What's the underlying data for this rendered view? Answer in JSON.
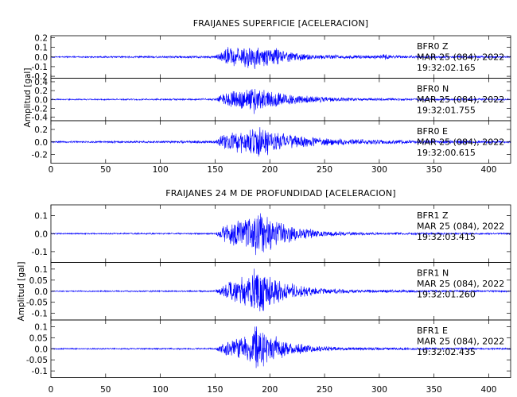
{
  "chart_data": [
    {
      "type": "line",
      "title": "FRAIJANES SUPERFICIE [ACELERACION]",
      "ylabel": "Amplitud [gal]",
      "xlim": [
        0,
        420
      ],
      "x_ticks": [
        0,
        50,
        100,
        150,
        200,
        250,
        300,
        350,
        400
      ],
      "line_color": "#0000ff",
      "series": [
        {
          "name": "BFR0 Z",
          "info": [
            "BFR0   Z",
            "MAR 25 (084), 2022",
            "19:32:02.165"
          ],
          "ylim": [
            -0.22,
            0.22
          ],
          "y_ticks": [
            -0.2,
            -0.1,
            0.0,
            0.1,
            0.2
          ],
          "envelope": [
            [
              0,
              0.008
            ],
            [
              60,
              0.01
            ],
            [
              100,
              0.012
            ],
            [
              150,
              0.015
            ],
            [
              155,
              0.06
            ],
            [
              160,
              0.11
            ],
            [
              170,
              0.12
            ],
            [
              180,
              0.15
            ],
            [
              190,
              0.13
            ],
            [
              200,
              0.11
            ],
            [
              210,
              0.08
            ],
            [
              220,
              0.05
            ],
            [
              240,
              0.03
            ],
            [
              270,
              0.02
            ],
            [
              300,
              0.02
            ],
            [
              305,
              0.04
            ],
            [
              310,
              0.02
            ],
            [
              330,
              0.015
            ],
            [
              420,
              0.01
            ]
          ]
        },
        {
          "name": "BFR0 N",
          "info": [
            "BFR0   N",
            "MAR 25 (084), 2022",
            "19:32:01.755"
          ],
          "ylim": [
            -0.48,
            0.48
          ],
          "y_ticks": [
            -0.4,
            -0.2,
            0.0,
            0.2,
            0.4
          ],
          "envelope": [
            [
              0,
              0.015
            ],
            [
              100,
              0.02
            ],
            [
              150,
              0.025
            ],
            [
              155,
              0.12
            ],
            [
              160,
              0.2
            ],
            [
              170,
              0.22
            ],
            [
              180,
              0.3
            ],
            [
              185,
              0.4
            ],
            [
              190,
              0.28
            ],
            [
              200,
              0.22
            ],
            [
              210,
              0.16
            ],
            [
              230,
              0.1
            ],
            [
              250,
              0.06
            ],
            [
              280,
              0.04
            ],
            [
              310,
              0.03
            ],
            [
              420,
              0.02
            ]
          ]
        },
        {
          "name": "BFR0 E",
          "info": [
            "BFR0   E",
            "MAR 25 (084), 2022",
            "19:32:00.615"
          ],
          "ylim": [
            -0.34,
            0.34
          ],
          "y_ticks": [
            -0.2,
            0.0,
            0.2
          ],
          "envelope": [
            [
              0,
              0.015
            ],
            [
              100,
              0.02
            ],
            [
              150,
              0.025
            ],
            [
              155,
              0.1
            ],
            [
              160,
              0.17
            ],
            [
              175,
              0.2
            ],
            [
              185,
              0.28
            ],
            [
              195,
              0.24
            ],
            [
              205,
              0.18
            ],
            [
              220,
              0.12
            ],
            [
              240,
              0.08
            ],
            [
              270,
              0.05
            ],
            [
              300,
              0.04
            ],
            [
              420,
              0.02
            ]
          ]
        }
      ]
    },
    {
      "type": "line",
      "title": "FRAIJANES 24 M DE PROFUNDIDAD [ACELERACION]",
      "ylabel": "Amplitud [gal]",
      "xlim": [
        0,
        420
      ],
      "x_ticks": [
        0,
        50,
        100,
        150,
        200,
        250,
        300,
        350,
        400
      ],
      "line_color": "#0000ff",
      "series": [
        {
          "name": "BFR1 Z",
          "info": [
            "BFR1   Z",
            "MAR 25 (084), 2022",
            "19:32:03.415"
          ],
          "ylim": [
            -0.16,
            0.16
          ],
          "y_ticks": [
            -0.1,
            0.0,
            0.1
          ],
          "envelope": [
            [
              0,
              0.004
            ],
            [
              150,
              0.005
            ],
            [
              155,
              0.03
            ],
            [
              160,
              0.06
            ],
            [
              170,
              0.09
            ],
            [
              180,
              0.11
            ],
            [
              190,
              0.14
            ],
            [
              200,
              0.1
            ],
            [
              210,
              0.07
            ],
            [
              225,
              0.04
            ],
            [
              245,
              0.02
            ],
            [
              270,
              0.012
            ],
            [
              300,
              0.008
            ],
            [
              420,
              0.005
            ]
          ]
        },
        {
          "name": "BFR1 N",
          "info": [
            "BFR1   N",
            "MAR 25 (084), 2022",
            "19:32:01.260"
          ],
          "ylim": [
            -0.13,
            0.13
          ],
          "y_ticks": [
            -0.1,
            -0.05,
            0.0,
            0.05,
            0.1
          ],
          "envelope": [
            [
              0,
              0.003
            ],
            [
              150,
              0.004
            ],
            [
              155,
              0.02
            ],
            [
              160,
              0.04
            ],
            [
              170,
              0.06
            ],
            [
              180,
              0.09
            ],
            [
              190,
              0.12
            ],
            [
              200,
              0.08
            ],
            [
              210,
              0.05
            ],
            [
              225,
              0.03
            ],
            [
              250,
              0.015
            ],
            [
              280,
              0.008
            ],
            [
              420,
              0.004
            ]
          ]
        },
        {
          "name": "BFR1 E",
          "info": [
            "BFR1   E",
            "MAR 25 (084), 2022",
            "19:32:02.435"
          ],
          "ylim": [
            -0.13,
            0.13
          ],
          "y_ticks": [
            -0.1,
            -0.05,
            0.0,
            0.05,
            0.1
          ],
          "envelope": [
            [
              0,
              0.003
            ],
            [
              150,
              0.004
            ],
            [
              155,
              0.02
            ],
            [
              160,
              0.04
            ],
            [
              170,
              0.05
            ],
            [
              180,
              0.07
            ],
            [
              190,
              0.12
            ],
            [
              195,
              0.09
            ],
            [
              205,
              0.06
            ],
            [
              220,
              0.03
            ],
            [
              240,
              0.015
            ],
            [
              270,
              0.008
            ],
            [
              420,
              0.004
            ]
          ]
        }
      ]
    }
  ]
}
